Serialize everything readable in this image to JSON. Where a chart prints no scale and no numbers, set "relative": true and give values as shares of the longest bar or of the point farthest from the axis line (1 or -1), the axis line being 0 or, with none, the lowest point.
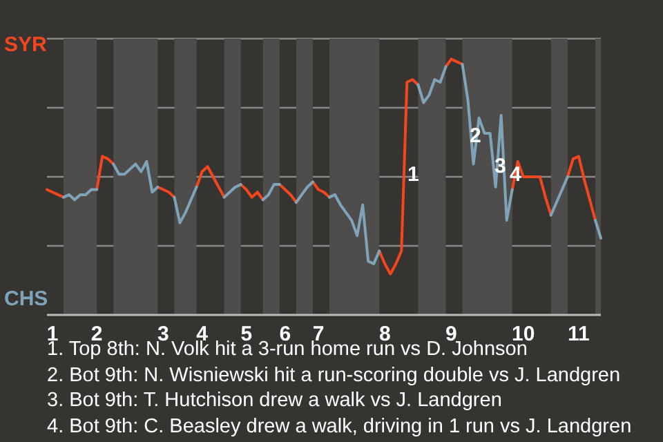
{
  "chart_data": {
    "type": "line",
    "relative": true,
    "categories": [
      null,
      "1",
      null,
      null,
      null,
      null,
      null,
      null,
      null,
      "2",
      null,
      null,
      null,
      null,
      null,
      null,
      null,
      null,
      null,
      null,
      null,
      "3",
      null,
      null,
      null,
      null,
      null,
      null,
      "4",
      null,
      null,
      null,
      null,
      null,
      null,
      null,
      "5",
      null,
      null,
      null,
      null,
      null,
      null,
      "6",
      null,
      null,
      null,
      null,
      null,
      "7",
      null,
      null,
      null,
      null,
      null,
      null,
      null,
      null,
      null,
      null,
      null,
      "8",
      null,
      null,
      null,
      null,
      null,
      null,
      null,
      null,
      null,
      null,
      null,
      "9",
      null,
      null,
      null,
      null,
      null,
      null,
      null,
      null,
      null,
      null,
      null,
      null,
      "10",
      null,
      null,
      null,
      null,
      null,
      null,
      null,
      null,
      null,
      "11",
      null,
      null,
      null,
      null
    ],
    "series": [
      {
        "color": "#f2461f",
        "values": [
          0.49,
          0.48,
          0.47,
          0.46,
          null,
          null,
          null,
          null,
          null,
          0.49,
          0.62,
          0.61,
          0.59,
          null,
          null,
          null,
          null,
          null,
          null,
          null,
          0.5,
          0.49,
          0.48,
          0.46,
          null,
          null,
          null,
          0.5,
          0.56,
          0.58,
          0.54,
          0.5,
          0.46,
          null,
          null,
          0.51,
          0.49,
          0.46,
          0.48,
          0.45,
          null,
          null,
          0.51,
          0.49,
          0.47,
          0.44,
          null,
          null,
          0.52,
          0.49,
          0.48,
          0.46,
          null,
          null,
          null,
          null,
          null,
          null,
          null,
          null,
          0.25,
          0.2,
          0.16,
          0.2,
          0.25,
          0.91,
          0.92,
          0.9,
          null,
          null,
          null,
          null,
          0.97,
          1,
          0.99,
          0.98,
          null,
          null,
          null,
          null,
          null,
          null,
          null,
          null,
          0.49,
          0.6,
          0.54,
          0.54,
          0.54,
          0.54,
          0.46,
          0.39,
          null,
          null,
          0.54,
          0.61,
          0.62,
          0.53,
          0.45,
          0.37,
          null
        ]
      },
      {
        "color": "#7fa3b8",
        "values": [
          null,
          null,
          null,
          0.46,
          0.47,
          0.45,
          0.47,
          0.47,
          0.49,
          0.49,
          null,
          null,
          0.59,
          0.55,
          0.55,
          0.57,
          0.59,
          0.56,
          0.6,
          0.48,
          0.5,
          null,
          null,
          0.46,
          0.36,
          0.4,
          0.45,
          0.5,
          null,
          null,
          null,
          null,
          0.46,
          0.48,
          0.5,
          0.51,
          null,
          null,
          null,
          0.45,
          0.47,
          0.51,
          0.51,
          null,
          null,
          0.44,
          0.47,
          0.5,
          0.52,
          null,
          null,
          0.46,
          0.47,
          0.43,
          0.4,
          0.37,
          0.31,
          0.43,
          0.21,
          0.2,
          0.25,
          null,
          null,
          null,
          null,
          null,
          null,
          0.9,
          0.83,
          0.86,
          0.92,
          0.91,
          0.97,
          null,
          null,
          0.98,
          0.84,
          0.59,
          0.77,
          0.71,
          0.71,
          0.5,
          0.78,
          0.37,
          0.49,
          null,
          null,
          null,
          null,
          null,
          null,
          0.39,
          0.44,
          0.49,
          0.54,
          null,
          null,
          null,
          null,
          0.37,
          0.3
        ]
      }
    ],
    "grid": "y",
    "annotations": [
      "SYR",
      "CHS",
      "1",
      "2",
      "3",
      "4",
      "1. Top 8th: N. Volk hit a 3-run home run vs D. Johnson",
      "2. Bot 9th: N. Wisniewski hit a run-scoring double vs J. Landgren",
      "3. Bot 9th: T. Hutchison drew a walk vs J. Landgren",
      "4. Bot 9th: C. Beasley drew a walk, driving in 1 run vs J. Landgren"
    ]
  }
}
